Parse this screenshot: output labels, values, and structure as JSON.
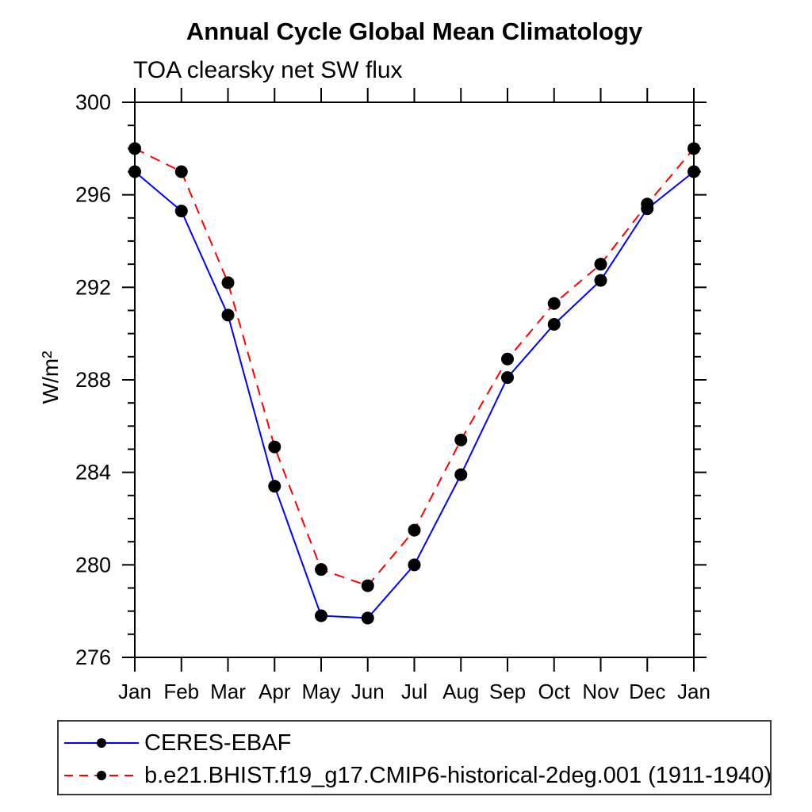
{
  "header": {
    "title": "Annual Cycle Global Mean Climatology",
    "subtitle": "TOA clearsky net SW flux"
  },
  "chart_data": {
    "type": "line",
    "title": "Annual Cycle Global Mean Climatology",
    "subtitle": "TOA clearsky net SW flux",
    "ylabel": "W/m²",
    "xlabel": "",
    "x_labels": [
      "Jan",
      "Feb",
      "Mar",
      "Apr",
      "May",
      "Jun",
      "Jul",
      "Aug",
      "Sep",
      "Oct",
      "Nov",
      "Dec",
      "Jan"
    ],
    "ylim": [
      276,
      300
    ],
    "yticks_major": [
      276,
      280,
      284,
      288,
      292,
      296,
      300
    ],
    "ytick_minor_step": 1,
    "grid": false,
    "legend_position": "below-plot boxed",
    "frame_color": "#000000",
    "series": [
      {
        "name": "CERES-EBAF",
        "color": "#0000ff",
        "line_style": "solid",
        "marker": "circle",
        "marker_color": "#000000",
        "values": [
          297.0,
          295.3,
          290.8,
          283.4,
          277.8,
          277.7,
          280.0,
          283.9,
          288.1,
          290.4,
          292.3,
          295.4,
          297.0
        ]
      },
      {
        "name": "b.e21.BHIST.f19_g17.CMIP6-historical-2deg.001 (1911-1940)",
        "color": "#ff0000",
        "line_style": "dashed",
        "marker": "circle",
        "marker_color": "#000000",
        "values": [
          298.0,
          297.0,
          292.2,
          285.1,
          279.8,
          279.1,
          281.5,
          285.4,
          288.9,
          291.3,
          293.0,
          295.6,
          298.0
        ]
      }
    ]
  }
}
